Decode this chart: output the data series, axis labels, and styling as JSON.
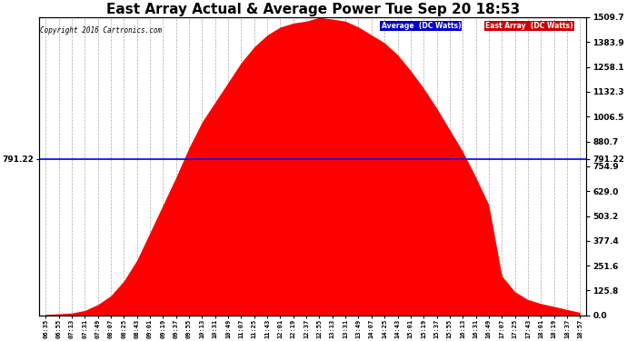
{
  "title": "East Array Actual & Average Power Tue Sep 20 18:53",
  "copyright": "Copyright 2016 Cartronics.com",
  "average_value": 791.22,
  "y_max": 1509.7,
  "y_min": 0.0,
  "y_ticks_right": [
    0.0,
    125.8,
    251.6,
    377.4,
    503.2,
    629.0,
    754.9,
    880.7,
    1006.5,
    1132.3,
    1258.1,
    1383.9,
    1509.7
  ],
  "background_color": "#ffffff",
  "grid_color": "#aaaaaa",
  "fill_color": "#ff0000",
  "avg_line_color": "#0000ff",
  "title_fontsize": 11,
  "x_labels": [
    "06:35",
    "06:55",
    "07:13",
    "07:31",
    "07:49",
    "08:07",
    "08:25",
    "08:43",
    "09:01",
    "09:19",
    "09:37",
    "09:55",
    "10:13",
    "10:31",
    "10:49",
    "11:07",
    "11:25",
    "11:43",
    "12:01",
    "12:19",
    "12:37",
    "12:55",
    "13:13",
    "13:31",
    "13:49",
    "14:07",
    "14:25",
    "14:43",
    "15:01",
    "15:19",
    "15:37",
    "15:55",
    "16:13",
    "16:31",
    "16:49",
    "17:07",
    "17:25",
    "17:43",
    "18:01",
    "18:19",
    "18:37",
    "18:57"
  ],
  "y_data": [
    5,
    8,
    12,
    25,
    55,
    100,
    175,
    280,
    420,
    560,
    700,
    850,
    980,
    1080,
    1180,
    1280,
    1360,
    1420,
    1460,
    1480,
    1490,
    1509,
    1500,
    1490,
    1460,
    1420,
    1380,
    1320,
    1240,
    1150,
    1050,
    940,
    830,
    700,
    560,
    200,
    120,
    80,
    60,
    45,
    30,
    15
  ],
  "avg_label": "791.22",
  "legend_avg_color": "#0000cc",
  "legend_ea_color": "#cc0000",
  "legend_avg_text": "Average  (DC Watts)",
  "legend_ea_text": "East Array  (DC Watts)"
}
